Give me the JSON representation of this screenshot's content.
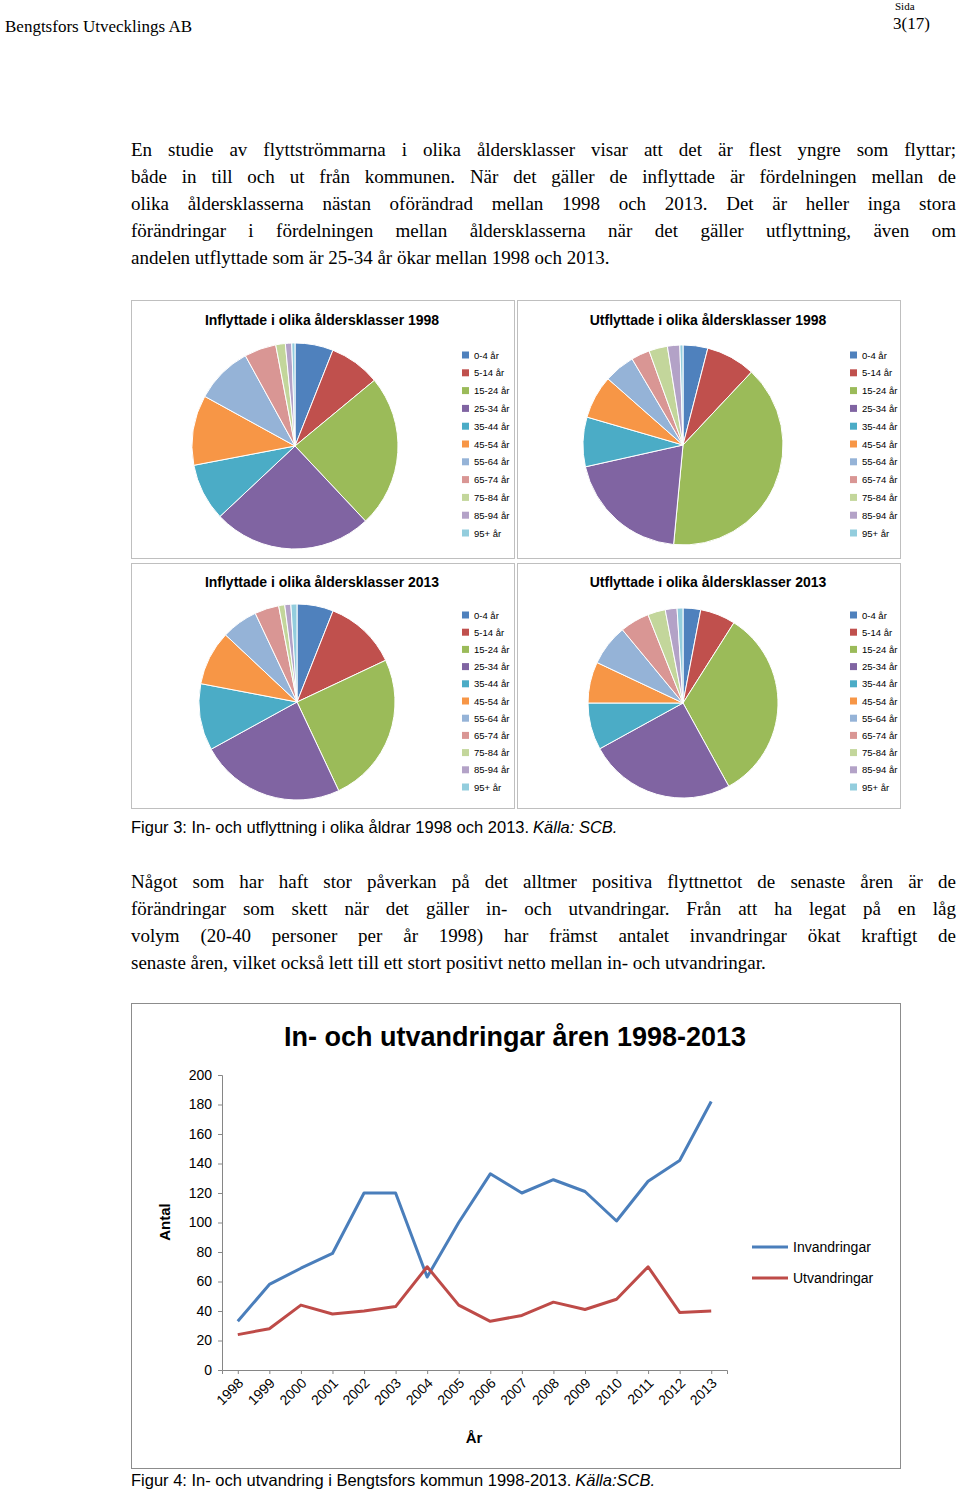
{
  "header": {
    "left": "Bengtsfors Utvecklings AB",
    "page_label": "Sida",
    "page": "3(17)"
  },
  "paragraphs": [
    [
      "En studie av flyttströmmarna i olika åldersklasser visar att det är flest yngre som flyttar;",
      "både in till och ut från kommunen. När det gäller de inflyttade är fördelningen mellan de",
      "olika åldersklasserna nästan oförändrad mellan 1998 och 2013. Det är heller inga stora",
      "förändringar i fördelningen mellan åldersklasserna när det gäller utflyttning, även om",
      "andelen utflyttade som är 25-34 år ökar mellan 1998 och 2013."
    ],
    [
      "Något som har haft stor påverkan på det alltmer positiva flyttnettot de senaste åren är de",
      "förändringar som skett när det gäller in- och utvandringar. Från att ha legat på en låg",
      "volym (20-40 personer per år 1998) har främst antalet invandringar ökat kraftigt de",
      "senaste åren, vilket också lett till ett stort positivt netto mellan in- och utvandringar."
    ]
  ],
  "chart_data": [
    {
      "type": "pie",
      "title": "Inflyttade i olika åldersklasser 1998",
      "categories": [
        "0-4 år",
        "5-14 år",
        "15-24 år",
        "25-34 år",
        "35-44 år",
        "45-54 år",
        "55-64 år",
        "65-74 år",
        "75-84 år",
        "85-94 år",
        "95+ år"
      ],
      "values": [
        6,
        8,
        24,
        25,
        9,
        11,
        9,
        5,
        1.5,
        1,
        0.5
      ],
      "colors": [
        "#4f81bd",
        "#c0504d",
        "#9bbb59",
        "#8064a2",
        "#4bacc6",
        "#f79646",
        "#95b3d7",
        "#d99694",
        "#c3d69b",
        "#b3a2c7",
        "#93cddd"
      ],
      "legend": "right"
    },
    {
      "type": "pie",
      "title": "Utflyttade i olika åldersklasser 1998",
      "categories": [
        "0-4 år",
        "5-14 år",
        "15-24 år",
        "25-34 år",
        "35-44 år",
        "45-54 år",
        "55-64 år",
        "65-74 år",
        "75-84 år",
        "85-94 år",
        "95+ år"
      ],
      "values": [
        4,
        8,
        39.5,
        20,
        8,
        7,
        5,
        3,
        3,
        2,
        0.5
      ],
      "colors": [
        "#4f81bd",
        "#c0504d",
        "#9bbb59",
        "#8064a2",
        "#4bacc6",
        "#f79646",
        "#95b3d7",
        "#d99694",
        "#c3d69b",
        "#b3a2c7",
        "#93cddd"
      ],
      "legend": "right"
    },
    {
      "type": "pie",
      "title": "Inflyttade i olika åldersklasser 2013",
      "categories": [
        "0-4 år",
        "5-14 år",
        "15-24 år",
        "25-34 år",
        "35-44 år",
        "45-54 år",
        "55-64 år",
        "65-74 år",
        "75-84 år",
        "85-94 år",
        "95+ år"
      ],
      "values": [
        6,
        12,
        25,
        24,
        11,
        9,
        6,
        4,
        1,
        1,
        1
      ],
      "colors": [
        "#4f81bd",
        "#c0504d",
        "#9bbb59",
        "#8064a2",
        "#4bacc6",
        "#f79646",
        "#95b3d7",
        "#d99694",
        "#c3d69b",
        "#b3a2c7",
        "#93cddd"
      ],
      "legend": "right"
    },
    {
      "type": "pie",
      "title": "Utflyttade i olika åldersklasser 2013",
      "categories": [
        "0-4 år",
        "5-14 år",
        "15-24 år",
        "25-34 år",
        "35-44 år",
        "45-54 år",
        "55-64 år",
        "65-74 år",
        "75-84 år",
        "85-94 år",
        "95+ år"
      ],
      "values": [
        3,
        6,
        33,
        25,
        8,
        7,
        7,
        5,
        3,
        2,
        1
      ],
      "colors": [
        "#4f81bd",
        "#c0504d",
        "#9bbb59",
        "#8064a2",
        "#4bacc6",
        "#f79646",
        "#95b3d7",
        "#d99694",
        "#c3d69b",
        "#b3a2c7",
        "#93cddd"
      ],
      "legend": "right"
    },
    {
      "type": "line",
      "title": "In- och utvandringar åren 1998-2013",
      "x_label": "År",
      "y_label": "Antal",
      "categories": [
        "1998",
        "1999",
        "2000",
        "2001",
        "2002",
        "2003",
        "2004",
        "2005",
        "2006",
        "2007",
        "2008",
        "2009",
        "2010",
        "2011",
        "2012",
        "2013"
      ],
      "series": [
        {
          "name": "Invandringar",
          "color": "#4a7ebb",
          "values": [
            33,
            58,
            69,
            79,
            120,
            120,
            63,
            100,
            133,
            120,
            129,
            121,
            101,
            128,
            142,
            182
          ]
        },
        {
          "name": "Utvandringar",
          "color": "#be4b48",
          "values": [
            24,
            28,
            44,
            38,
            40,
            43,
            70,
            44,
            33,
            37,
            46,
            41,
            48,
            70,
            39,
            40
          ]
        }
      ],
      "ylim": [
        0,
        200
      ],
      "yticks": [
        0,
        20,
        40,
        60,
        80,
        100,
        120,
        140,
        160,
        180,
        200
      ],
      "grid": false,
      "legend": "right"
    }
  ],
  "captions": [
    {
      "text": "Figur 3: In- och utflyttning i olika åldrar 1998 och 2013.",
      "source": "Källa: SCB."
    },
    {
      "text": "Figur 4: In- och utvandring i Bengtsfors kommun 1998-2013.",
      "source": "Källa:SCB."
    }
  ]
}
